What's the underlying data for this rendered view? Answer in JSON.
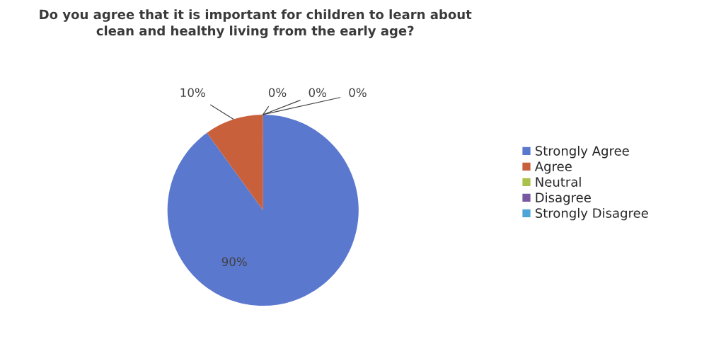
{
  "chart_data": {
    "type": "pie",
    "title": "Do you agree that it is important for children to learn about\nclean and healthy living from the early age?",
    "categories": [
      "Strongly Agree",
      "Agree",
      "Neutral",
      "Disagree",
      "Strongly Disagree"
    ],
    "values": [
      90,
      10,
      0,
      0,
      0
    ],
    "value_labels": [
      "90%",
      "10%",
      "0%",
      "0%",
      "0%"
    ],
    "colors": [
      "#5b78cf",
      "#c8603c",
      "#a9c24a",
      "#7859a0",
      "#4ea6d6"
    ],
    "legend": "right"
  }
}
